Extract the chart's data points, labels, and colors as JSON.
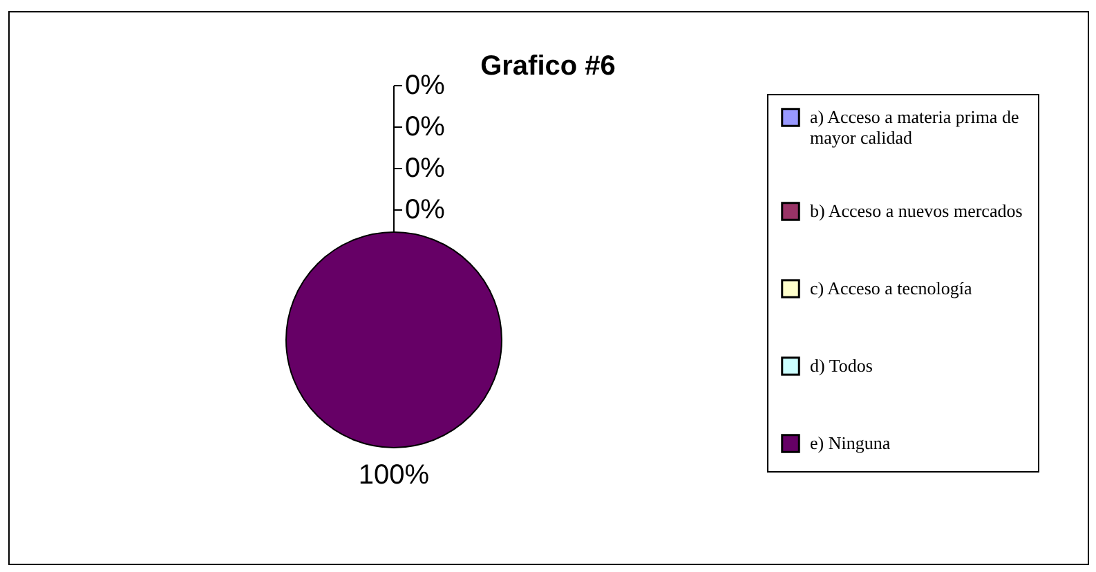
{
  "chart_data": {
    "type": "pie",
    "title": "Grafico #6",
    "categories": [
      "a) Acceso a materia prima de mayor calidad",
      "b) Acceso a nuevos mercados",
      "c) Acceso a tecnología",
      "d) Todos",
      "e) Ninguna"
    ],
    "values": [
      0,
      0,
      0,
      0,
      100
    ],
    "colors": [
      "#9999ff",
      "#993366",
      "#ffffcc",
      "#ccffff",
      "#660066"
    ],
    "value_labels": [
      "0%",
      "0%",
      "0%",
      "0%",
      "100%"
    ],
    "legend": "right"
  }
}
